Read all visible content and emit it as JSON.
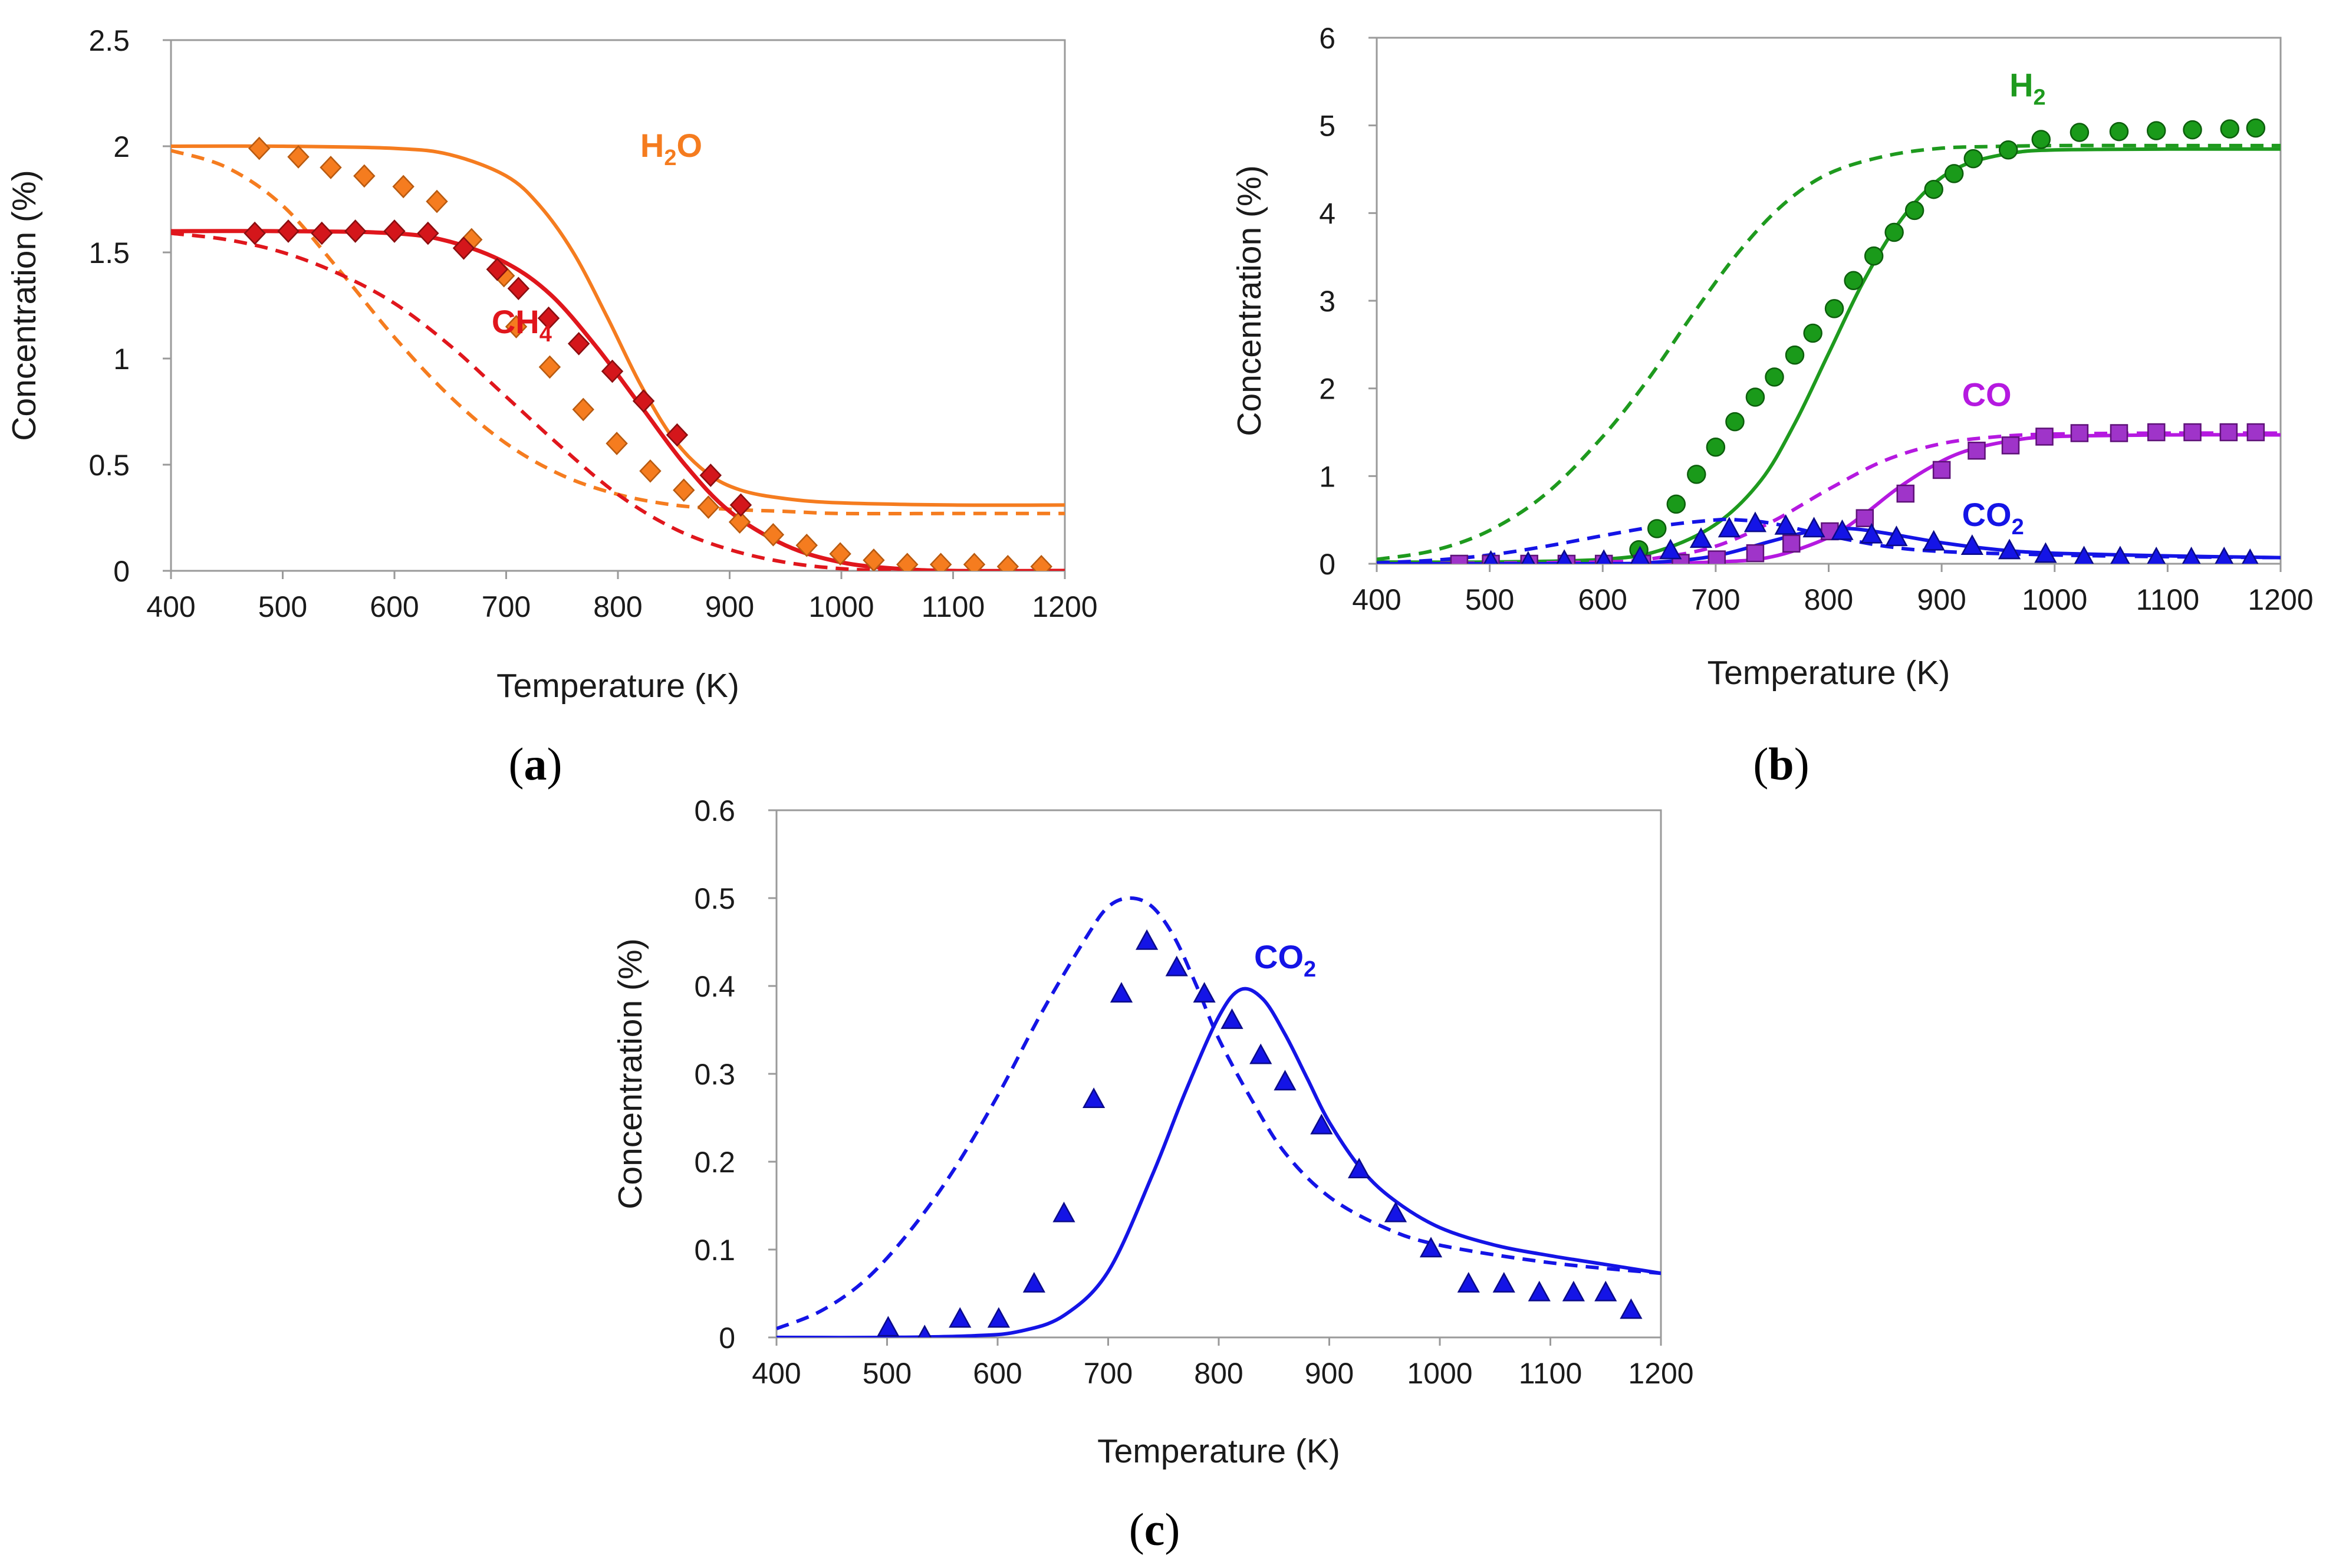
{
  "chart_data": [
    {
      "panel": "(a)",
      "panel_letter": "a",
      "type": "line",
      "xlabel": "Temperature (K)",
      "ylabel": "Concentration (%)",
      "xlim": [
        400,
        1200
      ],
      "ylim": [
        0,
        2.5
      ],
      "xticks": [
        400,
        500,
        600,
        700,
        800,
        900,
        1000,
        1100,
        1200
      ],
      "yticks": [
        0,
        0.5,
        1,
        1.5,
        2,
        2.5
      ],
      "ytick_labels": [
        "0",
        "0.5",
        "1",
        "1.5",
        "2",
        "2.5"
      ],
      "labels": [
        {
          "text": "H2O",
          "base": "H",
          "sub": "2",
          "tail": "O",
          "color": "#f57c1f",
          "at": [
            820,
            1.95
          ]
        },
        {
          "text": "CH4",
          "base": "CH",
          "sub": "4",
          "tail": "",
          "color": "#e0161c",
          "at": [
            687,
            1.12
          ]
        }
      ],
      "series": [
        {
          "name": "H2O model (solid)",
          "color": "#f57c1f",
          "style": "solid",
          "x": [
            400,
            500,
            600,
            650,
            700,
            730,
            760,
            790,
            820,
            850,
            880,
            910,
            950,
            1000,
            1100,
            1200
          ],
          "y": [
            2.0,
            2.0,
            1.99,
            1.96,
            1.86,
            1.72,
            1.5,
            1.2,
            0.88,
            0.62,
            0.46,
            0.38,
            0.34,
            0.32,
            0.31,
            0.31
          ]
        },
        {
          "name": "H2O model (dashed)",
          "color": "#f57c1f",
          "style": "dashed",
          "x": [
            400,
            450,
            500,
            550,
            600,
            650,
            700,
            750,
            800,
            850,
            900,
            950,
            1000,
            1100,
            1200
          ],
          "y": [
            1.98,
            1.9,
            1.72,
            1.42,
            1.1,
            0.82,
            0.6,
            0.45,
            0.36,
            0.31,
            0.29,
            0.28,
            0.27,
            0.27,
            0.27
          ]
        },
        {
          "name": "CH4 model (solid)",
          "color": "#e0161c",
          "style": "solid",
          "x": [
            400,
            500,
            600,
            650,
            700,
            740,
            780,
            820,
            860,
            900,
            950,
            1000,
            1050,
            1100,
            1200
          ],
          "y": [
            1.6,
            1.6,
            1.59,
            1.55,
            1.45,
            1.3,
            1.06,
            0.78,
            0.5,
            0.28,
            0.12,
            0.04,
            0.01,
            0.0,
            0.0
          ],
          "stroke_width": 7
        },
        {
          "name": "CH4 model (dashed)",
          "color": "#e0161c",
          "style": "dashed",
          "x": [
            400,
            450,
            500,
            550,
            600,
            650,
            700,
            750,
            800,
            850,
            900,
            950,
            1000,
            1050,
            1100,
            1200
          ],
          "y": [
            1.59,
            1.56,
            1.5,
            1.4,
            1.26,
            1.06,
            0.82,
            0.58,
            0.36,
            0.2,
            0.1,
            0.04,
            0.01,
            0.0,
            0.0,
            0.0
          ]
        },
        {
          "name": "H2O data",
          "color": "#f57c1f",
          "style": "points",
          "marker": "diamond",
          "edge": "#b85a10",
          "x": [
            479,
            514,
            543,
            573,
            608,
            638,
            669,
            698,
            709,
            739,
            769,
            799,
            829,
            859,
            881,
            909,
            939,
            969,
            999,
            1029,
            1059,
            1089,
            1119,
            1149,
            1179
          ],
          "y": [
            1.99,
            1.95,
            1.9,
            1.86,
            1.81,
            1.74,
            1.56,
            1.39,
            1.15,
            0.96,
            0.76,
            0.6,
            0.47,
            0.38,
            0.3,
            0.23,
            0.17,
            0.12,
            0.08,
            0.05,
            0.03,
            0.03,
            0.03,
            0.02,
            0.02
          ]
        },
        {
          "name": "CH4 data",
          "color": "#d4161b",
          "style": "points",
          "marker": "diamond",
          "edge": "#8a0e10",
          "x": [
            475,
            505,
            535,
            565,
            600,
            630,
            662,
            692,
            711,
            738,
            765,
            795,
            823,
            853,
            883,
            910
          ],
          "y": [
            1.59,
            1.6,
            1.59,
            1.6,
            1.6,
            1.59,
            1.52,
            1.42,
            1.33,
            1.19,
            1.07,
            0.94,
            0.8,
            0.64,
            0.45,
            0.31
          ]
        }
      ]
    },
    {
      "panel": "(b)",
      "panel_letter": "b",
      "type": "line",
      "xlabel": "Temperature (K)",
      "ylabel": "Concentration (%)",
      "xlim": [
        400,
        1200
      ],
      "ylim": [
        0,
        6
      ],
      "xticks": [
        400,
        500,
        600,
        700,
        800,
        900,
        1000,
        1100,
        1200
      ],
      "yticks": [
        0,
        1,
        2,
        3,
        4,
        5,
        6
      ],
      "ytick_labels": [
        "0",
        "1",
        "2",
        "3",
        "4",
        "5",
        "6"
      ],
      "labels": [
        {
          "text": "H2",
          "base": "H",
          "sub": "2",
          "tail": "",
          "color": "#1e9a1e",
          "at": [
            960,
            5.33
          ]
        },
        {
          "text": "CO",
          "base": "CO",
          "sub": "",
          "tail": "",
          "color": "#b519e0",
          "at": [
            918,
            1.8
          ]
        },
        {
          "text": "CO2",
          "base": "CO",
          "sub": "2",
          "tail": "",
          "color": "#1414e6",
          "at": [
            918,
            0.43
          ]
        }
      ],
      "series": [
        {
          "name": "H2 model (solid)",
          "color": "#1e9a1e",
          "style": "solid",
          "x": [
            400,
            500,
            600,
            650,
            700,
            740,
            770,
            800,
            830,
            860,
            890,
            920,
            960,
            1000,
            1100,
            1200
          ],
          "y": [
            0.02,
            0.02,
            0.05,
            0.15,
            0.45,
            0.95,
            1.6,
            2.4,
            3.2,
            3.85,
            4.3,
            4.55,
            4.68,
            4.72,
            4.73,
            4.73
          ]
        },
        {
          "name": "H2 model (dashed)",
          "color": "#1e9a1e",
          "style": "dashed",
          "x": [
            400,
            450,
            500,
            550,
            600,
            640,
            680,
            720,
            760,
            800,
            850,
            900,
            950,
            1000,
            1100,
            1200
          ],
          "y": [
            0.05,
            0.15,
            0.38,
            0.8,
            1.45,
            2.1,
            2.85,
            3.55,
            4.1,
            4.45,
            4.65,
            4.74,
            4.76,
            4.77,
            4.77,
            4.77
          ]
        },
        {
          "name": "CO model (solid)",
          "color": "#b519e0",
          "style": "solid",
          "x": [
            400,
            600,
            700,
            750,
            800,
            830,
            860,
            890,
            920,
            960,
            1000,
            1100,
            1200
          ],
          "y": [
            0.0,
            0.0,
            0.02,
            0.08,
            0.3,
            0.55,
            0.85,
            1.1,
            1.28,
            1.4,
            1.45,
            1.47,
            1.47
          ]
        },
        {
          "name": "CO model (dashed)",
          "color": "#b519e0",
          "style": "dashed",
          "x": [
            400,
            600,
            650,
            700,
            750,
            800,
            850,
            900,
            950,
            1000,
            1100,
            1200
          ],
          "y": [
            0.0,
            0.02,
            0.07,
            0.2,
            0.48,
            0.85,
            1.18,
            1.37,
            1.45,
            1.48,
            1.49,
            1.49
          ]
        },
        {
          "name": "CO2 model (solid)",
          "color": "#1414e6",
          "style": "solid",
          "x": [
            400,
            600,
            650,
            700,
            750,
            780,
            800,
            820,
            850,
            900,
            950,
            1000,
            1100,
            1200
          ],
          "y": [
            0.0,
            0.0,
            0.02,
            0.09,
            0.26,
            0.36,
            0.39,
            0.4,
            0.35,
            0.24,
            0.16,
            0.12,
            0.09,
            0.07
          ]
        },
        {
          "name": "CO2 model (dashed)",
          "color": "#1414e6",
          "style": "dashed",
          "x": [
            400,
            450,
            500,
            550,
            600,
            650,
            700,
            720,
            750,
            800,
            850,
            900,
            1000,
            1100,
            1200
          ],
          "y": [
            0.01,
            0.04,
            0.1,
            0.2,
            0.32,
            0.43,
            0.5,
            0.5,
            0.46,
            0.32,
            0.2,
            0.14,
            0.1,
            0.08,
            0.07
          ]
        },
        {
          "name": "H2 data",
          "color": "#1a9a1a",
          "style": "points",
          "marker": "circle",
          "edge": "#0c5e0c",
          "x": [
            632,
            648,
            665,
            683,
            700,
            717,
            735,
            752,
            770,
            786,
            805,
            822,
            840,
            858,
            876,
            893,
            911,
            928,
            959,
            988,
            1022,
            1057,
            1090,
            1122,
            1155,
            1178
          ],
          "y": [
            0.16,
            0.4,
            0.68,
            1.02,
            1.33,
            1.62,
            1.9,
            2.13,
            2.38,
            2.63,
            2.91,
            3.23,
            3.51,
            3.78,
            4.03,
            4.27,
            4.45,
            4.62,
            4.72,
            4.84,
            4.92,
            4.93,
            4.94,
            4.95,
            4.96,
            4.97
          ]
        },
        {
          "name": "CO data",
          "color": "#9f34c9",
          "style": "points",
          "marker": "square",
          "edge": "#5e1278",
          "x": [
            473,
            501,
            535,
            568,
            601,
            635,
            669,
            701,
            735,
            767,
            801,
            832,
            868,
            900,
            931,
            961,
            991,
            1022,
            1057,
            1090,
            1122,
            1154,
            1178
          ],
          "y": [
            0.0,
            0.0,
            0.0,
            0.0,
            0.0,
            0.0,
            0.01,
            0.05,
            0.12,
            0.23,
            0.37,
            0.52,
            0.8,
            1.07,
            1.29,
            1.35,
            1.45,
            1.49,
            1.49,
            1.5,
            1.5,
            1.5,
            1.5
          ]
        },
        {
          "name": "CO2 data",
          "color": "#1414e6",
          "style": "points",
          "marker": "triangle",
          "edge": "#0a0a8a",
          "x": [
            501,
            534,
            566,
            601,
            633,
            660,
            687,
            712,
            735,
            762,
            787,
            812,
            838,
            860,
            893,
            927,
            960,
            992,
            1026,
            1058,
            1090,
            1121,
            1150,
            1173
          ],
          "y": [
            0.01,
            0.0,
            0.02,
            0.02,
            0.06,
            0.14,
            0.27,
            0.39,
            0.45,
            0.42,
            0.39,
            0.36,
            0.32,
            0.29,
            0.24,
            0.19,
            0.14,
            0.1,
            0.06,
            0.06,
            0.05,
            0.05,
            0.05,
            0.03
          ]
        }
      ]
    },
    {
      "panel": "(c)",
      "panel_letter": "c",
      "type": "line",
      "xlabel": "Temperature (K)",
      "ylabel": "Concentration (%)",
      "xlim": [
        400,
        1200
      ],
      "ylim": [
        0,
        0.6
      ],
      "xticks": [
        400,
        500,
        600,
        700,
        800,
        900,
        1000,
        1100,
        1200
      ],
      "yticks": [
        0,
        0.1,
        0.2,
        0.3,
        0.4,
        0.5,
        0.6
      ],
      "ytick_labels": [
        "0",
        "0.1",
        "0.2",
        "0.3",
        "0.4",
        "0.5",
        "0.6"
      ],
      "labels": [
        {
          "text": "CO2",
          "base": "CO",
          "sub": "2",
          "tail": "",
          "color": "#1414e6",
          "at": [
            832,
            0.42
          ]
        }
      ],
      "series": [
        {
          "name": "CO2 model (solid)",
          "color": "#1414e6",
          "style": "solid",
          "x": [
            400,
            500,
            580,
            620,
            660,
            700,
            740,
            770,
            800,
            820,
            840,
            860,
            880,
            900,
            930,
            960,
            1000,
            1050,
            1100,
            1150,
            1200
          ],
          "y": [
            0.0,
            0.0,
            0.002,
            0.007,
            0.025,
            0.075,
            0.185,
            0.28,
            0.365,
            0.396,
            0.385,
            0.345,
            0.295,
            0.245,
            0.19,
            0.155,
            0.125,
            0.105,
            0.093,
            0.083,
            0.073
          ]
        },
        {
          "name": "CO2 model (dashed)",
          "color": "#1414e6",
          "style": "dashed",
          "x": [
            400,
            440,
            480,
            520,
            560,
            600,
            640,
            680,
            700,
            720,
            740,
            760,
            780,
            800,
            830,
            860,
            900,
            950,
            1000,
            1100,
            1200
          ],
          "y": [
            0.01,
            0.03,
            0.065,
            0.12,
            0.19,
            0.275,
            0.37,
            0.455,
            0.49,
            0.5,
            0.49,
            0.455,
            0.4,
            0.34,
            0.27,
            0.21,
            0.16,
            0.125,
            0.105,
            0.085,
            0.073
          ]
        },
        {
          "name": "CO2 data",
          "color": "#1414e6",
          "style": "points",
          "marker": "triangle",
          "edge": "#0a0a8a",
          "x": [
            501,
            534,
            566,
            601,
            633,
            660,
            687,
            712,
            735,
            762,
            787,
            812,
            838,
            860,
            893,
            927,
            960,
            992,
            1026,
            1058,
            1090,
            1121,
            1150,
            1173
          ],
          "y": [
            0.01,
            0.0,
            0.02,
            0.02,
            0.06,
            0.14,
            0.27,
            0.39,
            0.45,
            0.42,
            0.39,
            0.36,
            0.32,
            0.29,
            0.24,
            0.19,
            0.14,
            0.1,
            0.06,
            0.06,
            0.05,
            0.05,
            0.05,
            0.03
          ]
        }
      ]
    }
  ]
}
